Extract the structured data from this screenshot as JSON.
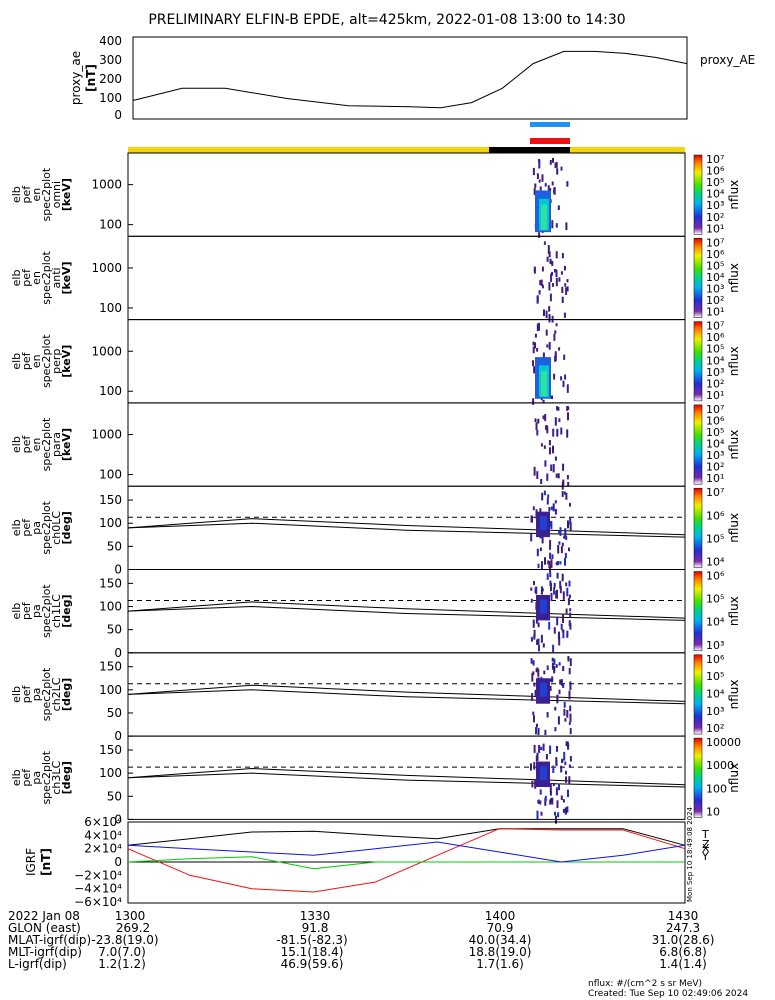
{
  "title": "PRELIMINARY ELFIN-B EPDE, alt=425km, 2022-01-08 13:00 to 14:30",
  "colors": {
    "yellow": "#f5d40a",
    "black": "#000000",
    "blue_bar": "#1e90ff",
    "red_bar": "#ee1111",
    "bx": "#1010ee",
    "by": "#00cc00",
    "bz": "#ee1111",
    "btot": "#000000"
  },
  "panels": [
    {
      "id": "proxy_ae",
      "ylabel": [
        "proxy_ae",
        "[nT]"
      ],
      "yticks": [
        "400",
        "300",
        "200",
        "100",
        "0"
      ],
      "side_label": "proxy_AE"
    },
    {
      "id": "omni",
      "ylabel": [
        "elb",
        "pef",
        "en",
        "spec2plot",
        "omni",
        "[keV]"
      ],
      "yticks": [
        "1000",
        "100"
      ],
      "cbar_ticks": [
        "10⁷",
        "10⁶",
        "10⁵",
        "10⁴",
        "10³",
        "10²",
        "10¹"
      ],
      "cbar_label": "nflux"
    },
    {
      "id": "anti",
      "ylabel": [
        "elb",
        "pef",
        "en",
        "spec2plot",
        "anti",
        "[keV]"
      ],
      "yticks": [
        "1000",
        "100"
      ],
      "cbar_ticks": [
        "10⁷",
        "10⁶",
        "10⁵",
        "10⁴",
        "10³",
        "10²",
        "10¹"
      ],
      "cbar_label": "nflux"
    },
    {
      "id": "perp",
      "ylabel": [
        "elb",
        "pef",
        "en",
        "spec2plot",
        "perp",
        "[keV]"
      ],
      "yticks": [
        "1000",
        "100"
      ],
      "cbar_ticks": [
        "10⁷",
        "10⁶",
        "10⁵",
        "10⁴",
        "10³",
        "10²",
        "10¹"
      ],
      "cbar_label": "nflux"
    },
    {
      "id": "para",
      "ylabel": [
        "elb",
        "pef",
        "en",
        "spec2plot",
        "para",
        "[keV]"
      ],
      "yticks": [
        "1000",
        "100"
      ],
      "cbar_ticks": [
        "10⁷",
        "10⁶",
        "10⁵",
        "10⁴",
        "10³",
        "10²",
        "10¹"
      ],
      "cbar_label": "nflux"
    },
    {
      "id": "ch0LC",
      "ylabel": [
        "elb",
        "pef",
        "pa",
        "spec2plot",
        "ch0LC",
        "[deg]"
      ],
      "yticks": [
        "150",
        "100",
        "50",
        "0"
      ],
      "cbar_ticks": [
        "10⁷",
        "10⁶",
        "10⁵",
        "10⁴"
      ],
      "cbar_label": "nflux"
    },
    {
      "id": "ch1LC",
      "ylabel": [
        "elb",
        "pef",
        "pa",
        "spec2plot",
        "ch1LC",
        "[deg]"
      ],
      "yticks": [
        "150",
        "100",
        "50",
        "0"
      ],
      "cbar_ticks": [
        "10⁶",
        "10⁵",
        "10⁴",
        "10³"
      ],
      "cbar_label": "nflux"
    },
    {
      "id": "ch2LC",
      "ylabel": [
        "elb",
        "pef",
        "pa",
        "spec2plot",
        "ch2LC",
        "[deg]"
      ],
      "yticks": [
        "150",
        "100",
        "50",
        "0"
      ],
      "cbar_ticks": [
        "10⁶",
        "10⁵",
        "10⁴",
        "10³",
        "10²"
      ],
      "cbar_label": "nflux"
    },
    {
      "id": "ch3LC",
      "ylabel": [
        "elb",
        "pef",
        "pa",
        "spec2plot",
        "ch3LC",
        "[deg]"
      ],
      "yticks": [
        "150",
        "100",
        "50",
        "0"
      ],
      "cbar_ticks": [
        "10000",
        "1000",
        "100",
        "10"
      ],
      "cbar_label": "nflux"
    },
    {
      "id": "igrf",
      "ylabel": [
        "IGRF",
        "[nT]"
      ],
      "yticks": [
        "6×10⁴",
        "4×10⁴",
        "2×10⁴",
        "0",
        "−2×10⁴",
        "−4×10⁴",
        "−6×10⁴"
      ],
      "legend": [
        "T",
        "Z",
        "Y",
        "X"
      ],
      "vertical_stamp": "Mon Sep 10 18:49:08 2024"
    }
  ],
  "chart_data": {
    "type": "line",
    "title": "PRELIMINARY ELFIN-B EPDE, alt=425km, 2022-01-08 13:00 to 14:30",
    "x_range": [
      "13:00",
      "14:30"
    ],
    "proxy_ae": {
      "x_minutes": [
        0,
        8,
        15,
        25,
        35,
        45,
        50,
        55,
        60,
        65,
        70,
        75,
        80,
        85,
        90
      ],
      "values": [
        90,
        150,
        150,
        100,
        65,
        60,
        55,
        80,
        150,
        270,
        330,
        330,
        320,
        300,
        270
      ],
      "ylim": [
        0,
        400
      ]
    },
    "igrf": {
      "x_minutes": [
        0,
        10,
        20,
        30,
        40,
        50,
        60,
        70,
        80,
        90
      ],
      "T": [
        25000,
        35000,
        45000,
        46000,
        40000,
        35000,
        50000,
        50000,
        50000,
        25000
      ],
      "Z": [
        20000,
        -20000,
        -40000,
        -45000,
        -30000,
        10000,
        50000,
        48000,
        48000,
        20000
      ],
      "Y": [
        0,
        5000,
        8000,
        -10000,
        0,
        0,
        0,
        0,
        0,
        0
      ],
      "X": [
        25000,
        20000,
        15000,
        10000,
        20000,
        30000,
        15000,
        0,
        10000,
        25000
      ],
      "ylim": [
        -60000,
        60000
      ]
    },
    "pa_lines": {
      "loss_cone_dashed": 113,
      "solid_upper_deg": [
        90,
        110,
        95,
        75
      ],
      "solid_lower_deg": [
        90,
        100,
        85,
        70
      ]
    }
  },
  "footer": {
    "rows": [
      [
        "2022 Jan 08",
        "1300",
        "1330",
        "1400",
        "1430"
      ],
      [
        "GLON (east)",
        "269.2",
        "91.8",
        "70.9",
        "247.3"
      ],
      [
        "MLAT-igrf(dip)",
        "-23.8(19.0)",
        "-81.5(-82.3)",
        "40.0(34.4)",
        "31.0(28.6)"
      ],
      [
        "MLT-igrf(dip)",
        "7.0(7.0)",
        "15.1(18.4)",
        "18.8(19.0)",
        "6.8(6.8)"
      ],
      [
        "L-igrf(dip)",
        "1.2(1.2)",
        "46.9(59.6)",
        "1.7(1.6)",
        "1.4(1.4)"
      ]
    ],
    "units_note": "nflux: #/(cm^2 s sr MeV)",
    "created": "Created: Tue Sep 10 02:49:06 2024"
  }
}
